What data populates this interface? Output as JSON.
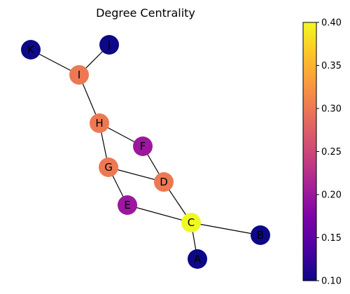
{
  "chart_data": {
    "type": "network",
    "title": "Degree Centrality",
    "colormap": "plasma",
    "colorbar": {
      "range": [
        0.1,
        0.4
      ],
      "ticks": [
        "0.10",
        "0.15",
        "0.20",
        "0.25",
        "0.30",
        "0.35",
        "0.40"
      ]
    },
    "nodes": [
      {
        "id": "A",
        "value": 0.1,
        "color": "#0d0887"
      },
      {
        "id": "B",
        "value": 0.1,
        "color": "#0d0887"
      },
      {
        "id": "C",
        "value": 0.4,
        "color": "#f0f921"
      },
      {
        "id": "D",
        "value": 0.3,
        "color": "#ed7953"
      },
      {
        "id": "E",
        "value": 0.2,
        "color": "#9c179e"
      },
      {
        "id": "F",
        "value": 0.2,
        "color": "#9c179e"
      },
      {
        "id": "G",
        "value": 0.3,
        "color": "#ed7953"
      },
      {
        "id": "H",
        "value": 0.3,
        "color": "#ed7953"
      },
      {
        "id": "I",
        "value": 0.3,
        "color": "#ed7953"
      },
      {
        "id": "J",
        "value": 0.1,
        "color": "#0d0887"
      },
      {
        "id": "K",
        "value": 0.1,
        "color": "#0d0887"
      }
    ],
    "edges": [
      [
        "K",
        "I"
      ],
      [
        "J",
        "I"
      ],
      [
        "I",
        "H"
      ],
      [
        "H",
        "F"
      ],
      [
        "H",
        "G"
      ],
      [
        "F",
        "D"
      ],
      [
        "G",
        "D"
      ],
      [
        "G",
        "E"
      ],
      [
        "D",
        "C"
      ],
      [
        "E",
        "C"
      ],
      [
        "C",
        "B"
      ],
      [
        "C",
        "A"
      ]
    ]
  }
}
